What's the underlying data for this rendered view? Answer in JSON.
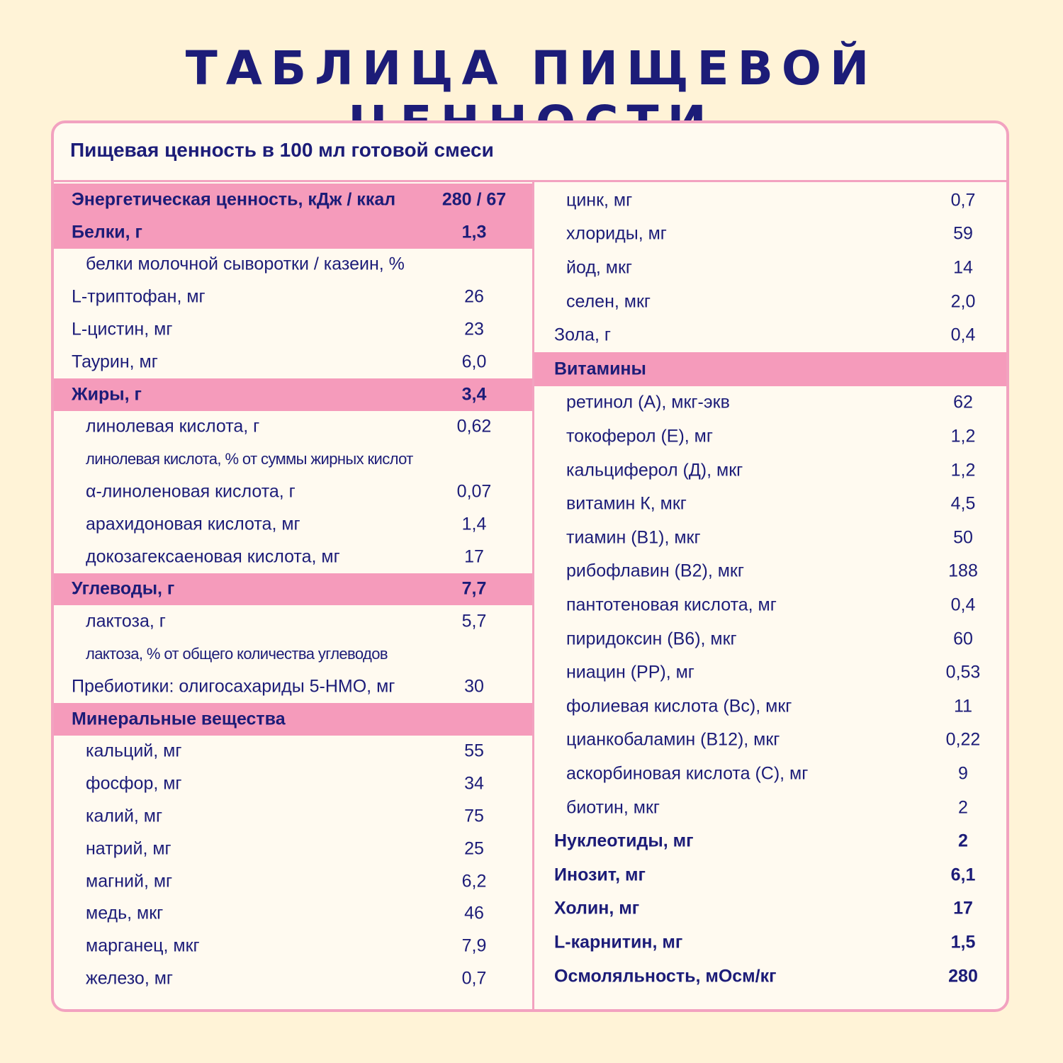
{
  "title": "ТАБЛИЦА ПИЩЕВОЙ ЦЕННОСТИ",
  "table": {
    "subtitle": "Пищевая ценность в 100 мл готовой смеси",
    "left": [
      [
        "Энергетическая ценность, кДж / ккал",
        "280 / 67"
      ],
      [
        "Белки, г",
        "1,3"
      ],
      [
        "белки молочной сыворотки / казеин, %"
      ],
      [
        "L-триптофан, мг",
        "26"
      ],
      [
        "L-цистин, мг",
        "23"
      ],
      [
        "Таурин, мг",
        "6,0"
      ],
      [
        "Жиры, г",
        "3,4"
      ],
      [
        "линолевая кислота, г",
        "0,62"
      ],
      [
        "линолевая кислота, % от суммы жирных кислот"
      ],
      [
        "α-линоленовая кислота, г",
        "0,07"
      ],
      [
        "арахидоновая кислота, мг",
        "1,4"
      ],
      [
        "докозагексаеновая кислота, мг",
        "17"
      ],
      [
        "Углеводы, г",
        "7,7"
      ],
      [
        "лактоза, г",
        "5,7"
      ],
      [
        "лактоза, % от общего количества углеводов"
      ],
      [
        "Пребиотики: олигосахариды 5-НМО, мг",
        "30"
      ],
      [
        "Минеральные вещества"
      ],
      [
        "кальций, мг",
        "55"
      ],
      [
        "фосфор, мг",
        "34"
      ],
      [
        "калий, мг",
        "75"
      ],
      [
        "натрий, мг",
        "25"
      ],
      [
        "магний, мг",
        "6,2"
      ],
      [
        "медь, мкг",
        "46"
      ],
      [
        "марганец, мкг",
        "7,9"
      ],
      [
        "железо, мг",
        "0,7"
      ]
    ],
    "right": [
      [
        "цинк, мг",
        "0,7"
      ],
      [
        "хлориды, мг",
        "59"
      ],
      [
        "йод, мкг",
        "14"
      ],
      [
        "селен, мкг",
        "2,0"
      ],
      [
        "Зола, г",
        "0,4"
      ],
      [
        "Витамины"
      ],
      [
        "ретинол (А), мкг-экв",
        "62"
      ],
      [
        "токоферол (Е), мг",
        "1,2"
      ],
      [
        "кальциферол (Д), мкг",
        "1,2"
      ],
      [
        "витамин К, мкг",
        "4,5"
      ],
      [
        "тиамин (В1), мкг",
        "50"
      ],
      [
        "рибофлавин (В2), мкг",
        "188"
      ],
      [
        "пантотеновая кислота, мг",
        "0,4"
      ],
      [
        "пиридоксин (В6), мкг",
        "60"
      ],
      [
        "ниацин (РР), мг",
        "0,53"
      ],
      [
        "фолиевая кислота (Вс), мкг",
        "11"
      ],
      [
        "цианкобаламин (В12), мкг",
        "0,22"
      ],
      [
        "аскорбиновая кислота (С), мг",
        "9"
      ],
      [
        "биотин, мкг",
        "2"
      ],
      [
        "Нуклеотиды, мг",
        "2"
      ],
      [
        "Инозит, мг",
        "6,1"
      ],
      [
        "Холин, мг",
        "17"
      ],
      [
        "L-карнитин, мг",
        "1,5"
      ],
      [
        "Осмоляльность, мОсм/кг",
        "280"
      ]
    ]
  }
}
